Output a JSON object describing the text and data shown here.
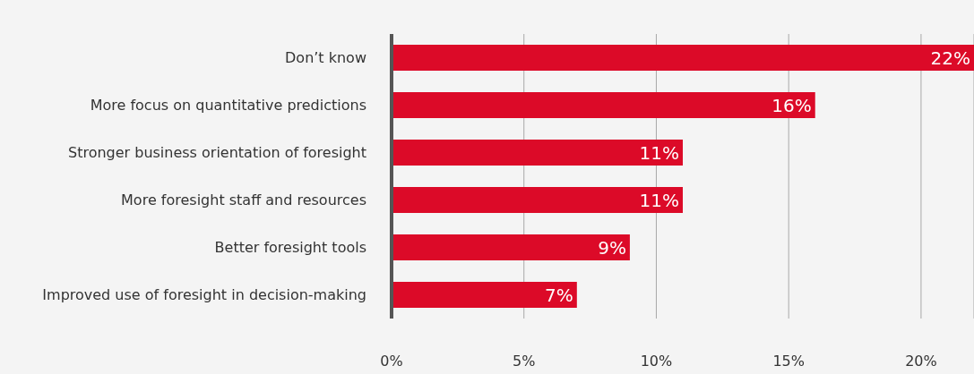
{
  "chart_data": {
    "type": "bar",
    "orientation": "horizontal",
    "categories": [
      "Don’t know",
      "More focus on quantitative predictions",
      "Stronger business orientation of foresight",
      "More foresight staff and resources",
      "Better foresight tools",
      "Improved use of foresight in decision-making"
    ],
    "values": [
      22,
      16,
      11,
      11,
      9,
      7
    ],
    "value_labels": [
      "22%",
      "16%",
      "11%",
      "11%",
      "9%",
      "7%"
    ],
    "color": "#dc0a28",
    "xlim": [
      0,
      22
    ],
    "xticks": [
      {
        "value": 0,
        "label": "0%"
      },
      {
        "value": 5,
        "label": "5%"
      },
      {
        "value": 10,
        "label": "10%"
      },
      {
        "value": 15,
        "label": "15%"
      },
      {
        "value": 20,
        "label": "20%"
      }
    ],
    "grid": "x",
    "legend": false
  }
}
